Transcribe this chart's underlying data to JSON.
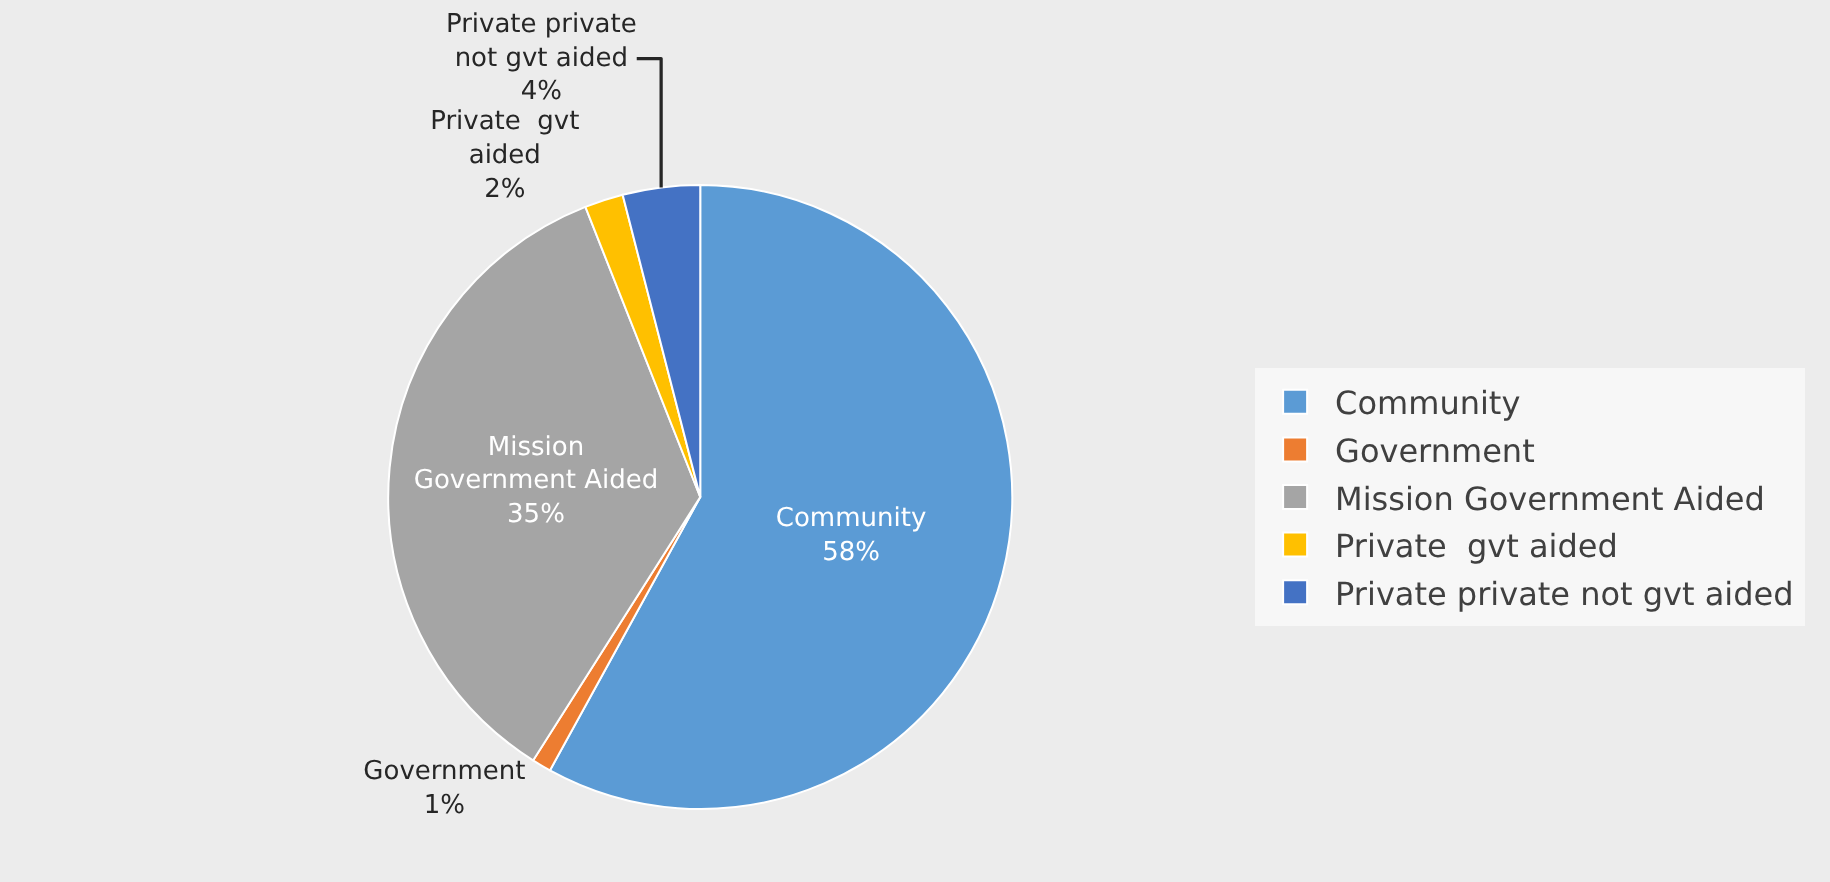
{
  "chart_data": {
    "type": "pie",
    "categories": [
      "Community",
      "Government",
      "Mission Government Aided",
      "Private  gvt aided",
      "Private private not gvt aided"
    ],
    "values": [
      58,
      1,
      35,
      2,
      4
    ],
    "value_labels": [
      "58%",
      "1%",
      "35%",
      "2%",
      "4%"
    ],
    "colors": [
      "#5b9bd5",
      "#ed7d31",
      "#a5a5a5",
      "#ffc000",
      "#4472c4"
    ],
    "legend": "right"
  }
}
